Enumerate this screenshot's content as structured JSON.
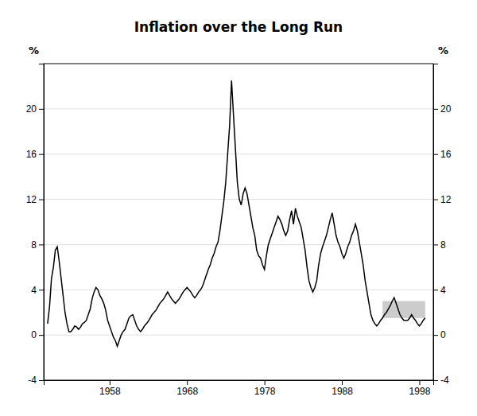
{
  "chart_data": {
    "type": "line",
    "title": "Inflation over the Long Run",
    "ylabel": "%",
    "y2label": "%",
    "color": "#000000",
    "grid": "y",
    "xlim": [
      1949.5,
      1999.8
    ],
    "xticks": [
      1958,
      1968,
      1978,
      1988,
      1998
    ],
    "ylim": [
      -4,
      24
    ],
    "yticks": [
      -4,
      0,
      4,
      8,
      12,
      16,
      20
    ],
    "y2lim": [
      -4,
      24
    ],
    "y2ticks": [
      -4,
      0,
      4,
      8,
      12,
      16,
      20
    ],
    "band": {
      "x": [
        1993.25,
        1998.75
      ],
      "y": [
        1.5,
        3.0
      ],
      "color": "#aaaaaa"
    },
    "x": [
      1950.0,
      1950.25,
      1950.5,
      1950.75,
      1951.0,
      1951.25,
      1951.5,
      1951.75,
      1952.0,
      1952.25,
      1952.5,
      1952.75,
      1953.0,
      1953.25,
      1953.5,
      1953.75,
      1954.0,
      1954.25,
      1954.5,
      1954.75,
      1955.0,
      1955.25,
      1955.5,
      1955.75,
      1956.0,
      1956.25,
      1956.5,
      1956.75,
      1957.0,
      1957.25,
      1957.5,
      1957.75,
      1958.0,
      1958.25,
      1958.5,
      1958.75,
      1959.0,
      1959.25,
      1959.5,
      1959.75,
      1960.0,
      1960.25,
      1960.5,
      1960.75,
      1961.0,
      1961.25,
      1961.5,
      1961.75,
      1962.0,
      1962.25,
      1962.5,
      1962.75,
      1963.0,
      1963.25,
      1963.5,
      1963.75,
      1964.0,
      1964.25,
      1964.5,
      1964.75,
      1965.0,
      1965.25,
      1965.5,
      1965.75,
      1966.0,
      1966.25,
      1966.5,
      1966.75,
      1967.0,
      1967.25,
      1967.5,
      1967.75,
      1968.0,
      1968.25,
      1968.5,
      1968.75,
      1969.0,
      1969.25,
      1969.5,
      1969.75,
      1970.0,
      1970.25,
      1970.5,
      1970.75,
      1971.0,
      1971.25,
      1971.5,
      1971.75,
      1972.0,
      1972.25,
      1972.5,
      1972.75,
      1973.0,
      1973.25,
      1973.5,
      1973.75,
      1974.0,
      1974.25,
      1974.5,
      1974.75,
      1975.0,
      1975.25,
      1975.5,
      1975.75,
      1976.0,
      1976.25,
      1976.5,
      1976.75,
      1977.0,
      1977.25,
      1977.5,
      1977.75,
      1978.0,
      1978.25,
      1978.5,
      1978.75,
      1979.0,
      1979.25,
      1979.5,
      1979.75,
      1980.0,
      1980.25,
      1980.5,
      1980.75,
      1981.0,
      1981.25,
      1981.5,
      1981.75,
      1982.0,
      1982.25,
      1982.5,
      1982.75,
      1983.0,
      1983.25,
      1983.5,
      1983.75,
      1984.0,
      1984.25,
      1984.5,
      1984.75,
      1985.0,
      1985.25,
      1985.5,
      1985.75,
      1986.0,
      1986.25,
      1986.5,
      1986.75,
      1987.0,
      1987.25,
      1987.5,
      1987.75,
      1988.0,
      1988.25,
      1988.5,
      1988.75,
      1989.0,
      1989.25,
      1989.5,
      1989.75,
      1990.0,
      1990.25,
      1990.5,
      1990.75,
      1991.0,
      1991.25,
      1991.5,
      1991.75,
      1992.0,
      1992.25,
      1992.5,
      1992.75,
      1993.0,
      1993.25,
      1993.5,
      1993.75,
      1994.0,
      1994.25,
      1994.5,
      1994.75,
      1995.0,
      1995.25,
      1995.5,
      1995.75,
      1996.0,
      1996.25,
      1996.5,
      1996.75,
      1997.0,
      1997.25,
      1997.5,
      1997.75,
      1998.0,
      1998.25,
      1998.5,
      1998.75
    ],
    "values": [
      1.0,
      2.5,
      5.0,
      6.0,
      7.5,
      7.8,
      6.5,
      5.0,
      3.5,
      2.0,
      1.0,
      0.3,
      0.3,
      0.5,
      0.8,
      0.7,
      0.5,
      0.7,
      1.0,
      1.1,
      1.3,
      1.8,
      2.3,
      3.2,
      3.8,
      4.2,
      4.0,
      3.5,
      3.2,
      2.8,
      2.2,
      1.3,
      0.8,
      0.3,
      -0.2,
      -0.5,
      -1.0,
      -0.5,
      0.0,
      0.3,
      0.5,
      1.0,
      1.5,
      1.7,
      1.8,
      1.3,
      0.8,
      0.5,
      0.3,
      0.5,
      0.8,
      1.0,
      1.2,
      1.5,
      1.8,
      2.0,
      2.2,
      2.5,
      2.8,
      3.0,
      3.2,
      3.5,
      3.8,
      3.5,
      3.2,
      3.0,
      2.8,
      3.0,
      3.2,
      3.5,
      3.8,
      4.0,
      4.2,
      4.0,
      3.8,
      3.5,
      3.3,
      3.5,
      3.8,
      4.0,
      4.3,
      4.8,
      5.3,
      5.8,
      6.2,
      6.8,
      7.2,
      7.8,
      8.2,
      9.2,
      10.5,
      11.8,
      13.5,
      16.0,
      18.5,
      22.5,
      19.5,
      16.5,
      13.5,
      12.0,
      11.5,
      12.5,
      13.0,
      12.5,
      11.5,
      10.5,
      9.5,
      8.8,
      7.5,
      7.0,
      6.8,
      6.2,
      5.8,
      7.0,
      8.0,
      8.5,
      9.0,
      9.5,
      10.0,
      10.5,
      10.2,
      9.8,
      9.2,
      8.8,
      9.2,
      10.2,
      11.0,
      9.8,
      11.2,
      10.5,
      10.0,
      9.5,
      8.5,
      7.5,
      6.0,
      4.8,
      4.2,
      3.8,
      4.2,
      4.8,
      6.2,
      7.2,
      7.8,
      8.3,
      8.8,
      9.5,
      10.2,
      10.8,
      9.8,
      8.8,
      8.2,
      7.8,
      7.2,
      6.8,
      7.2,
      7.8,
      8.2,
      8.8,
      9.2,
      9.8,
      9.2,
      8.2,
      7.2,
      6.2,
      4.8,
      3.8,
      2.8,
      1.8,
      1.3,
      1.0,
      0.8,
      1.0,
      1.3,
      1.5,
      1.8,
      2.0,
      2.3,
      2.6,
      3.0,
      3.3,
      2.8,
      2.3,
      1.8,
      1.5,
      1.3,
      1.3,
      1.3,
      1.5,
      1.8,
      1.5,
      1.3,
      1.0,
      0.8,
      1.0,
      1.3,
      1.5
    ]
  }
}
